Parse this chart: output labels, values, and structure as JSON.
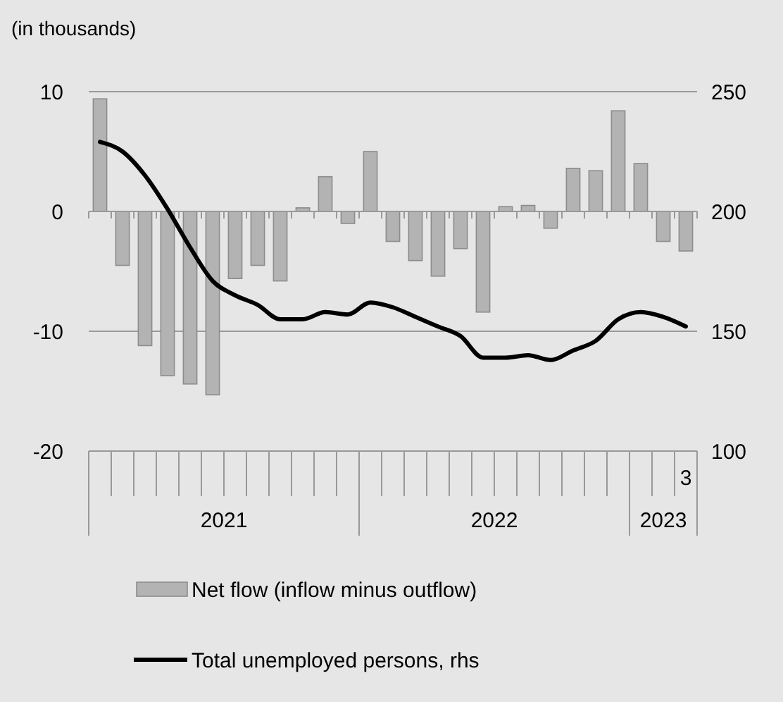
{
  "chart_data": {
    "type": "bar",
    "title": "(in thousands)",
    "categories": [
      null,
      null,
      null,
      null,
      null,
      null,
      null,
      null,
      null,
      null,
      null,
      null,
      null,
      null,
      null,
      null,
      null,
      null,
      null,
      null,
      null,
      null,
      null,
      null,
      null,
      null,
      "3"
    ],
    "annotations": [
      "2021",
      "2022",
      "2023"
    ],
    "series": [
      {
        "name": "Net flow (inflow minus outflow)",
        "color": "#b3b3b3",
        "values": [
          9.4,
          -4.5,
          -11.2,
          -13.7,
          -14.4,
          -15.3,
          -5.6,
          -4.5,
          -5.8,
          0.3,
          2.9,
          -1.0,
          5.0,
          -2.5,
          -4.1,
          -5.4,
          -3.1,
          -8.4,
          0.4,
          0.5,
          -1.4,
          3.6,
          3.4,
          8.4,
          4.0,
          -2.5,
          -3.3
        ]
      },
      {
        "name": "Total unemployed persons, rhs",
        "type": "line",
        "axis": "y2",
        "color": "#000000",
        "values": [
          229,
          225,
          215,
          201,
          185,
          171,
          165,
          161,
          155,
          155,
          158,
          157,
          162,
          160,
          156,
          152,
          148,
          139,
          139,
          140,
          138,
          142,
          146,
          155,
          158,
          156,
          152
        ]
      }
    ],
    "ylim": [
      -20,
      10
    ],
    "yticks": [
      -20,
      -10,
      0,
      10
    ],
    "y2lim": [
      100,
      250
    ],
    "y2ticks": [
      100,
      150,
      200,
      250
    ],
    "grid": "y",
    "legend": "bottom"
  }
}
